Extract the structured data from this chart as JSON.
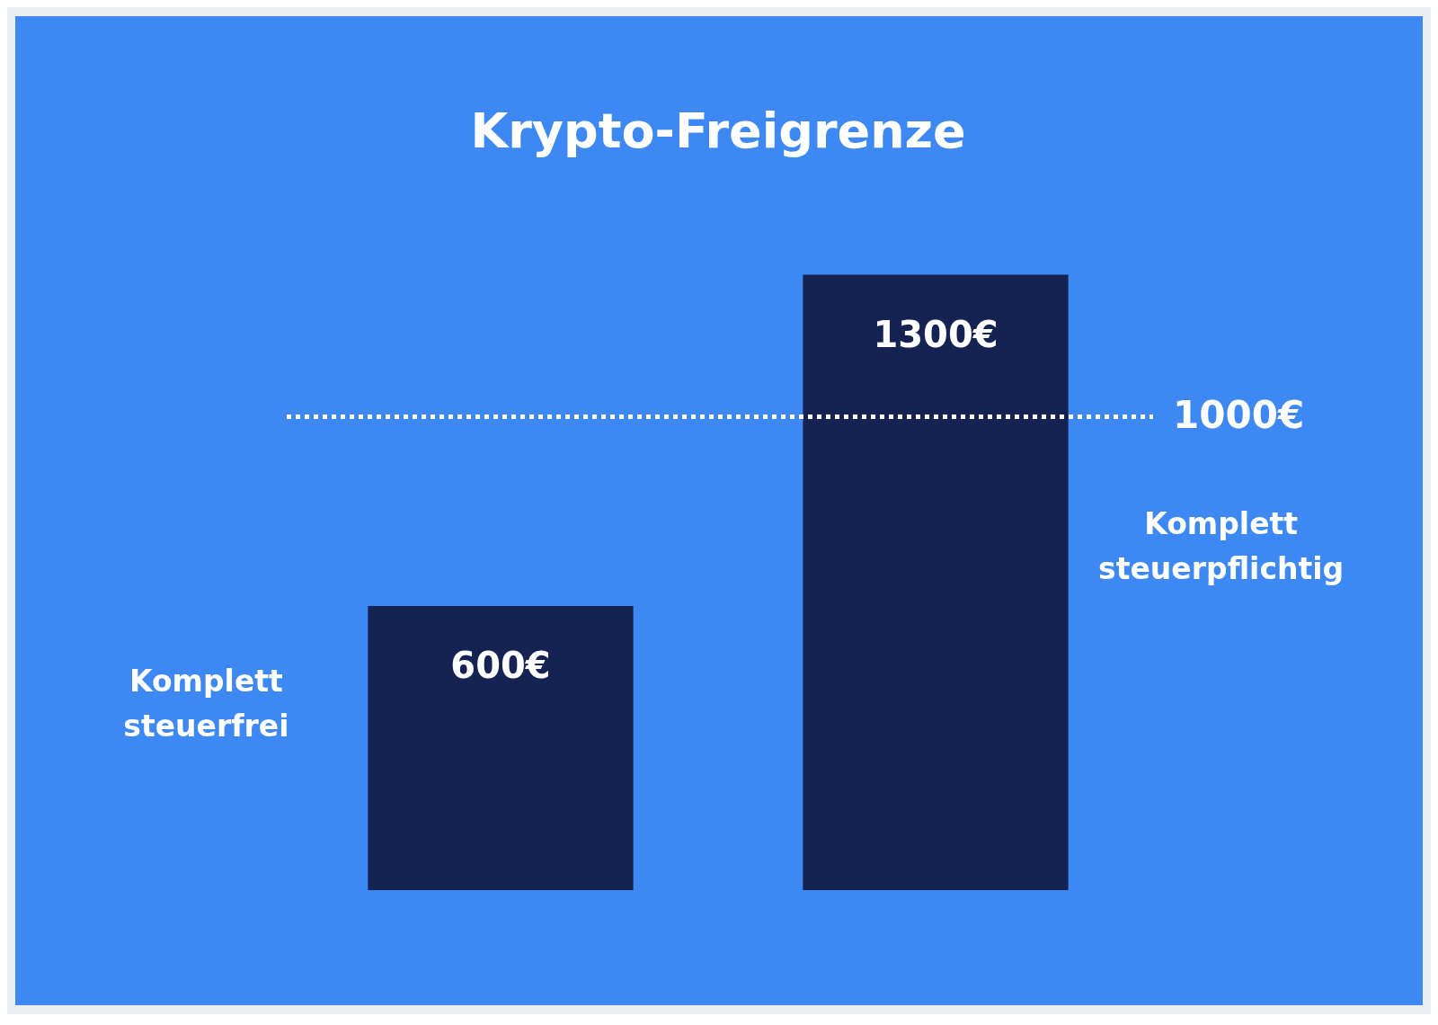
{
  "chart_data": {
    "type": "bar",
    "title": "Krypto-Freigrenze",
    "categories": [
      null,
      null
    ],
    "series": [
      {
        "color": "#152353",
        "values": [
          600,
          1300
        ],
        "value_labels": [
          "600€",
          "1300€"
        ]
      }
    ],
    "ref_lines": [
      {
        "axis": "y",
        "value": 1000,
        "label": "1000€",
        "color": "#ffffff",
        "line_style": "dotted"
      }
    ],
    "annotations": [
      "Komplett steuerfrei",
      "Komplett steuerpflichtig"
    ],
    "legend": false
  }
}
